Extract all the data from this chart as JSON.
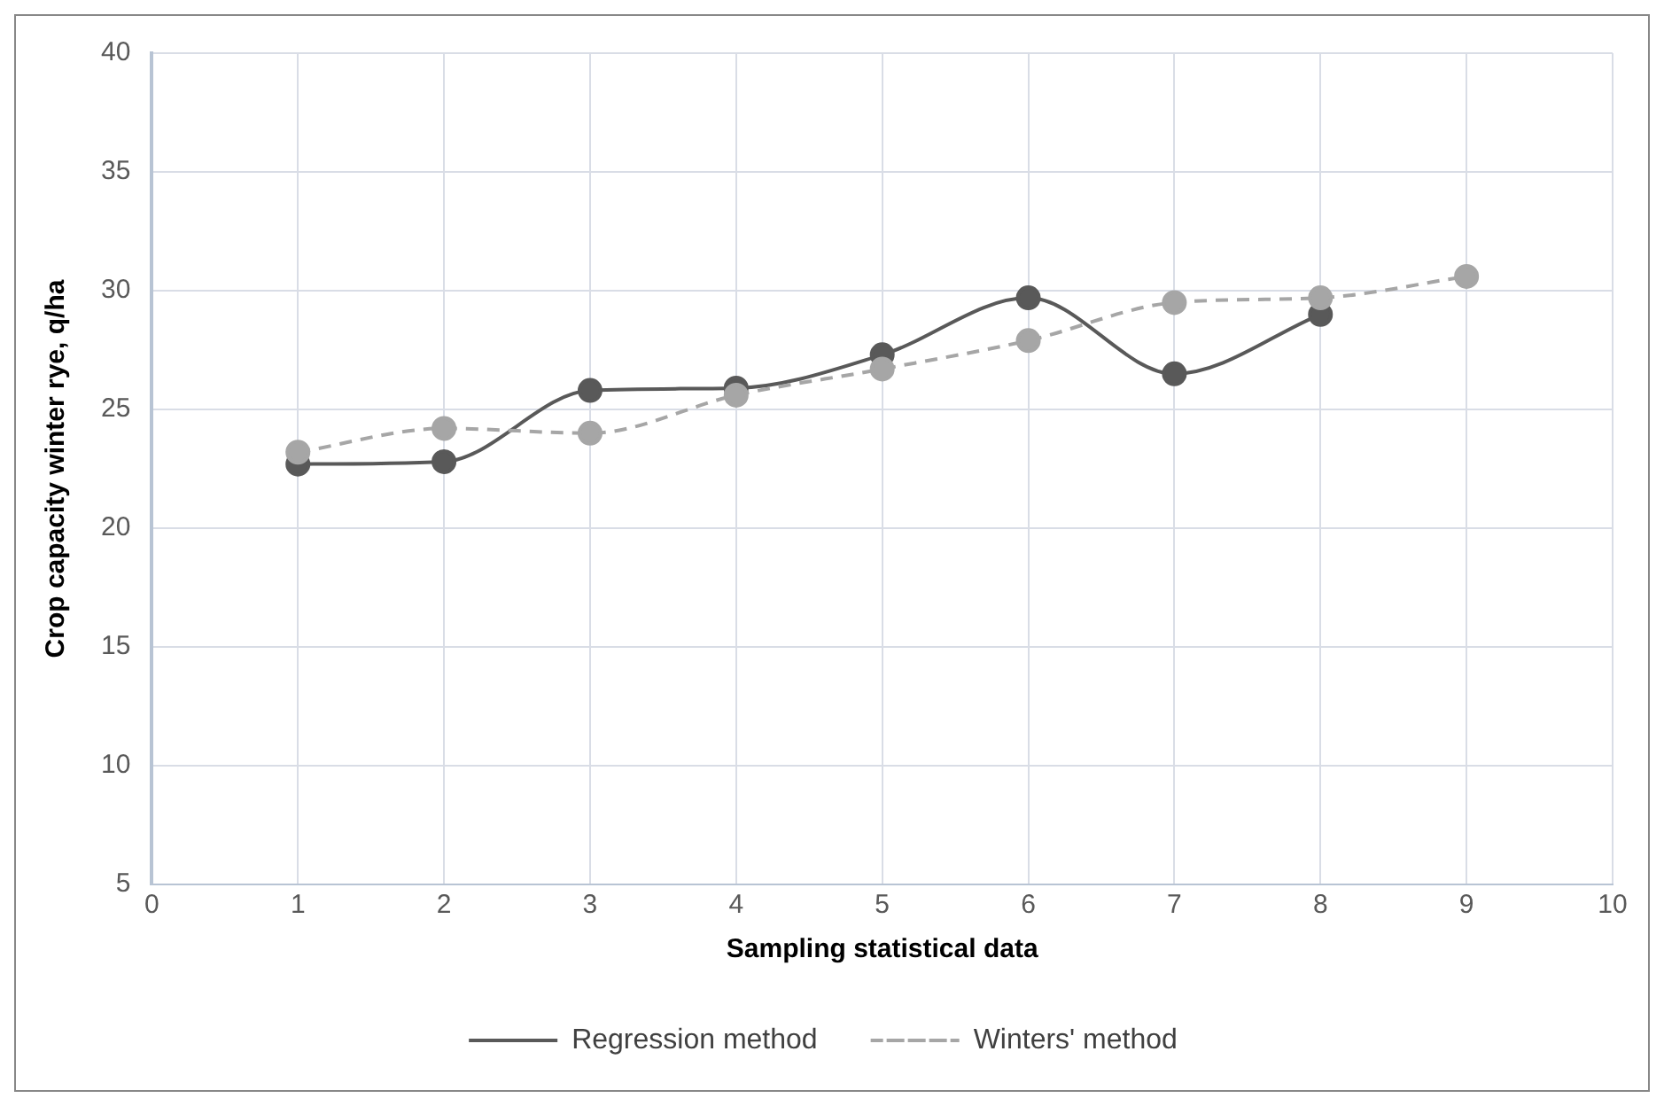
{
  "chart_data": {
    "type": "line",
    "xlabel": "Sampling statistical data",
    "ylabel": "Crop capacity winter rye, q/ha",
    "xlim": [
      0,
      10
    ],
    "xticks": [
      0,
      1,
      2,
      3,
      4,
      5,
      6,
      7,
      8,
      9,
      10
    ],
    "ylim": [
      5,
      40
    ],
    "yticks": [
      5,
      10,
      15,
      20,
      25,
      30,
      35,
      40
    ],
    "grid": true,
    "legend": "bottom",
    "marker": "circle",
    "series": [
      {
        "name": "Regression method",
        "color": "#595959",
        "line_style": "solid",
        "x": [
          1,
          2,
          3,
          4,
          5,
          6,
          7,
          8
        ],
        "values": [
          22.7,
          22.8,
          25.8,
          25.9,
          27.3,
          29.7,
          26.5,
          29.0
        ]
      },
      {
        "name": "Winters' method",
        "color": "#a6a6a6",
        "line_style": "dashed",
        "x": [
          1,
          2,
          3,
          4,
          5,
          6,
          7,
          8,
          9
        ],
        "values": [
          23.2,
          24.2,
          24.0,
          25.6,
          26.7,
          27.9,
          29.5,
          29.7,
          30.6
        ]
      }
    ]
  }
}
